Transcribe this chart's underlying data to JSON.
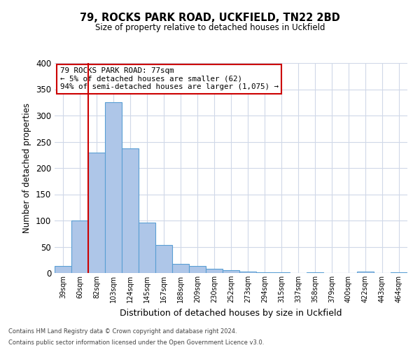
{
  "title": "79, ROCKS PARK ROAD, UCKFIELD, TN22 2BD",
  "subtitle": "Size of property relative to detached houses in Uckfield",
  "xlabel": "Distribution of detached houses by size in Uckfield",
  "ylabel": "Number of detached properties",
  "bin_labels": [
    "39sqm",
    "60sqm",
    "82sqm",
    "103sqm",
    "124sqm",
    "145sqm",
    "167sqm",
    "188sqm",
    "209sqm",
    "230sqm",
    "252sqm",
    "273sqm",
    "294sqm",
    "315sqm",
    "337sqm",
    "358sqm",
    "379sqm",
    "400sqm",
    "422sqm",
    "443sqm",
    "464sqm"
  ],
  "bar_heights": [
    13,
    100,
    230,
    325,
    238,
    96,
    54,
    17,
    14,
    8,
    5,
    3,
    2,
    2,
    0,
    2,
    0,
    0,
    3,
    0,
    2
  ],
  "bar_color": "#aec6e8",
  "bar_edgecolor": "#5a9fd4",
  "vline_color": "#cc0000",
  "ylim": [
    0,
    400
  ],
  "yticks": [
    0,
    50,
    100,
    150,
    200,
    250,
    300,
    350,
    400
  ],
  "annotation_title": "79 ROCKS PARK ROAD: 77sqm",
  "annotation_line1": "← 5% of detached houses are smaller (62)",
  "annotation_line2": "94% of semi-detached houses are larger (1,075) →",
  "annotation_box_color": "#ffffff",
  "annotation_box_edgecolor": "#cc0000",
  "footer1": "Contains HM Land Registry data © Crown copyright and database right 2024.",
  "footer2": "Contains public sector information licensed under the Open Government Licence v3.0.",
  "background_color": "#ffffff",
  "grid_color": "#d0d8e8"
}
